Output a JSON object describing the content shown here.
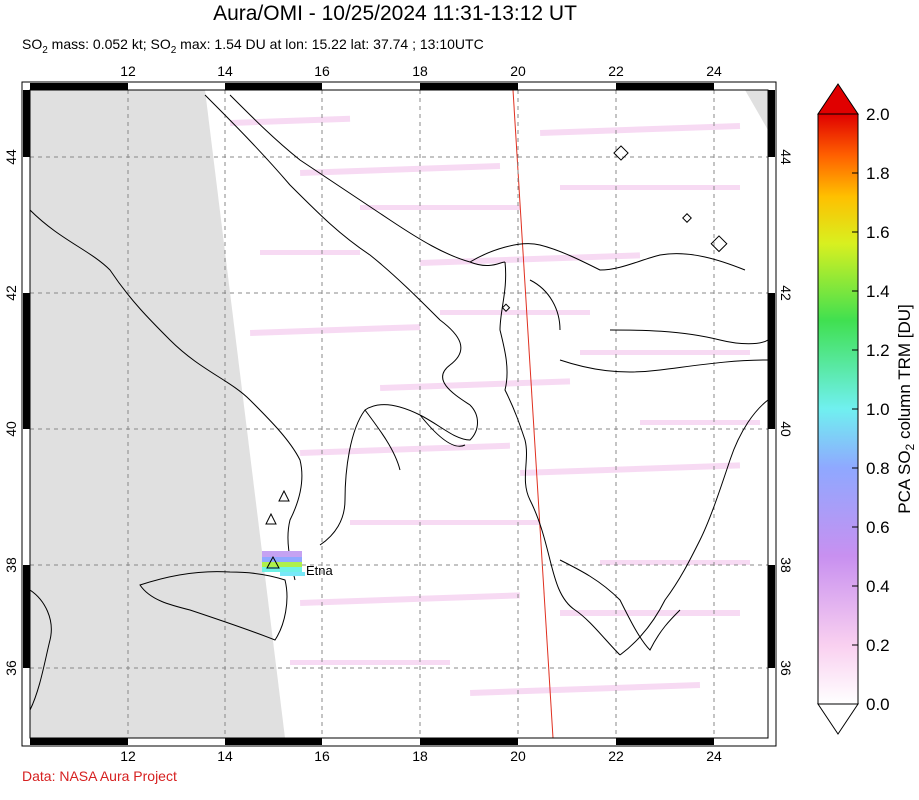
{
  "title": "Aura/OMI - 10/25/2024 11:31-13:12 UT",
  "subtitle": {
    "so2_mass_label": "SO",
    "so2_mass_rest": " mass: 0.052 kt; SO",
    "so2_max_rest": " max: 1.54 DU at lon: 15.22 lat: 37.74 ; 13:10UTC",
    "sub2": "2"
  },
  "credit": "Data: NASA Aura Project",
  "map": {
    "lon_ticks": [
      "12",
      "14",
      "16",
      "18",
      "20",
      "22",
      "24"
    ],
    "lat_ticks": [
      "44",
      "42",
      "40",
      "38",
      "36"
    ],
    "volcano_label": "Etna",
    "max_point": {
      "lon": 15.22,
      "lat": 37.74
    }
  },
  "colorbar": {
    "ticks": [
      "2.0",
      "1.8",
      "1.6",
      "1.4",
      "1.2",
      "1.0",
      "0.8",
      "0.6",
      "0.4",
      "0.2",
      "0.0"
    ],
    "label_prefix": "PCA SO",
    "label_sub": "2",
    "label_suffix": " column TRM [DU]",
    "colors": [
      "#ffffff",
      "#f9c9f0",
      "#c78cf0",
      "#8fa0ff",
      "#7cf5f0",
      "#3fe060",
      "#c8f020",
      "#ffd000",
      "#ff8800",
      "#ff2000",
      "#d00000"
    ]
  }
}
